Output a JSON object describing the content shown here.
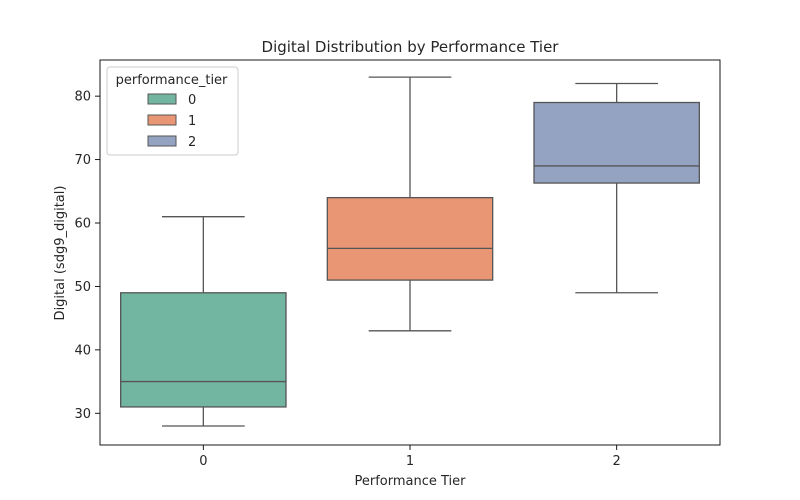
{
  "chart_data": {
    "type": "box",
    "title": "Digital Distribution by Performance Tier",
    "xlabel": "Performance Tier",
    "ylabel": "Digital (sdg9_digital)",
    "categories": [
      "0",
      "1",
      "2"
    ],
    "ylim": [
      25,
      85.7
    ],
    "yticks": [
      30,
      40,
      50,
      60,
      70,
      80
    ],
    "grid": false,
    "legend": {
      "title": "performance_tier",
      "placement": "top-left",
      "entries": [
        "0",
        "1",
        "2"
      ]
    },
    "boxes": [
      {
        "name": "0",
        "whisker_low": 28,
        "q1": 31,
        "median": 35,
        "q3": 49,
        "whisker_high": 61,
        "color": "#72b6a1"
      },
      {
        "name": "1",
        "whisker_low": 43,
        "q1": 51,
        "median": 56,
        "q3": 64,
        "whisker_high": 83,
        "color": "#e99675"
      },
      {
        "name": "2",
        "whisker_low": 49,
        "q1": 66.3,
        "median": 69,
        "q3": 79,
        "whisker_high": 82,
        "color": "#95a3c3"
      }
    ]
  }
}
